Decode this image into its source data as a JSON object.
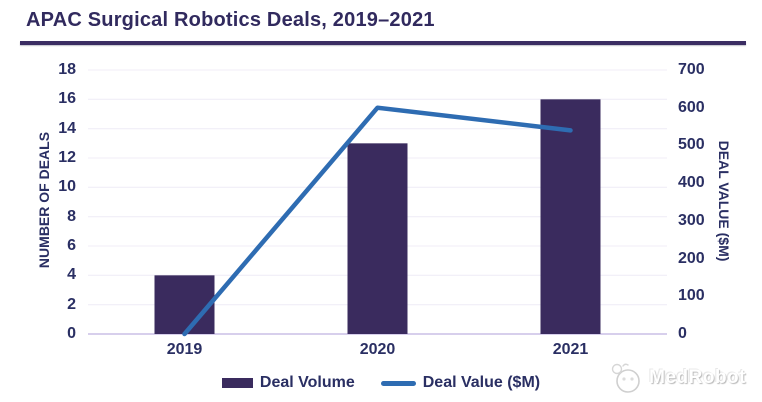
{
  "header": {
    "title": "APAC Surgical Robotics Deals, 2019–2021"
  },
  "chart_data": {
    "type": "bar",
    "subtype": "combo-bar-line-dual-axis",
    "title": "APAC Surgical Robotics Deals, 2019–2021",
    "categories": [
      "2019",
      "2020",
      "2021"
    ],
    "series": [
      {
        "name": "Deal Volume",
        "type": "bar",
        "axis": "left",
        "values": [
          4,
          13,
          16
        ],
        "color": "#3a2b5e"
      },
      {
        "name": "Deal Value ($M)",
        "type": "line",
        "axis": "right",
        "values": [
          0,
          600,
          540
        ],
        "color": "#2e6cb2"
      }
    ],
    "left_axis": {
      "label": "NUMBER OF DEALS",
      "min": 0,
      "max": 18,
      "step": 2,
      "ticks": [
        0,
        2,
        4,
        6,
        8,
        10,
        12,
        14,
        16,
        18
      ]
    },
    "right_axis": {
      "label": "DEAL VALUE ($M)",
      "min": 0,
      "max": 700,
      "step": 100,
      "ticks": [
        0,
        100,
        200,
        300,
        400,
        500,
        600,
        700
      ]
    },
    "grid": "horizontal gridlines aligned to left axis",
    "legend_position": "bottom"
  },
  "legend": {
    "items": [
      {
        "label": "Deal Volume",
        "swatch": "bar",
        "color": "#3a2b5e"
      },
      {
        "label": "Deal Value ($M)",
        "swatch": "line",
        "color": "#2e6cb2"
      }
    ]
  },
  "footer": {
    "brand": "MedRobot"
  },
  "colors": {
    "title": "#312a5e",
    "divider": "#3b2d63",
    "axis_text": "#2a2f63",
    "gridline": "#f0eef7",
    "zero_line": "#cabfe6",
    "bar": "#3a2b5e",
    "line": "#2e6cb2",
    "background": "#ffffff"
  }
}
